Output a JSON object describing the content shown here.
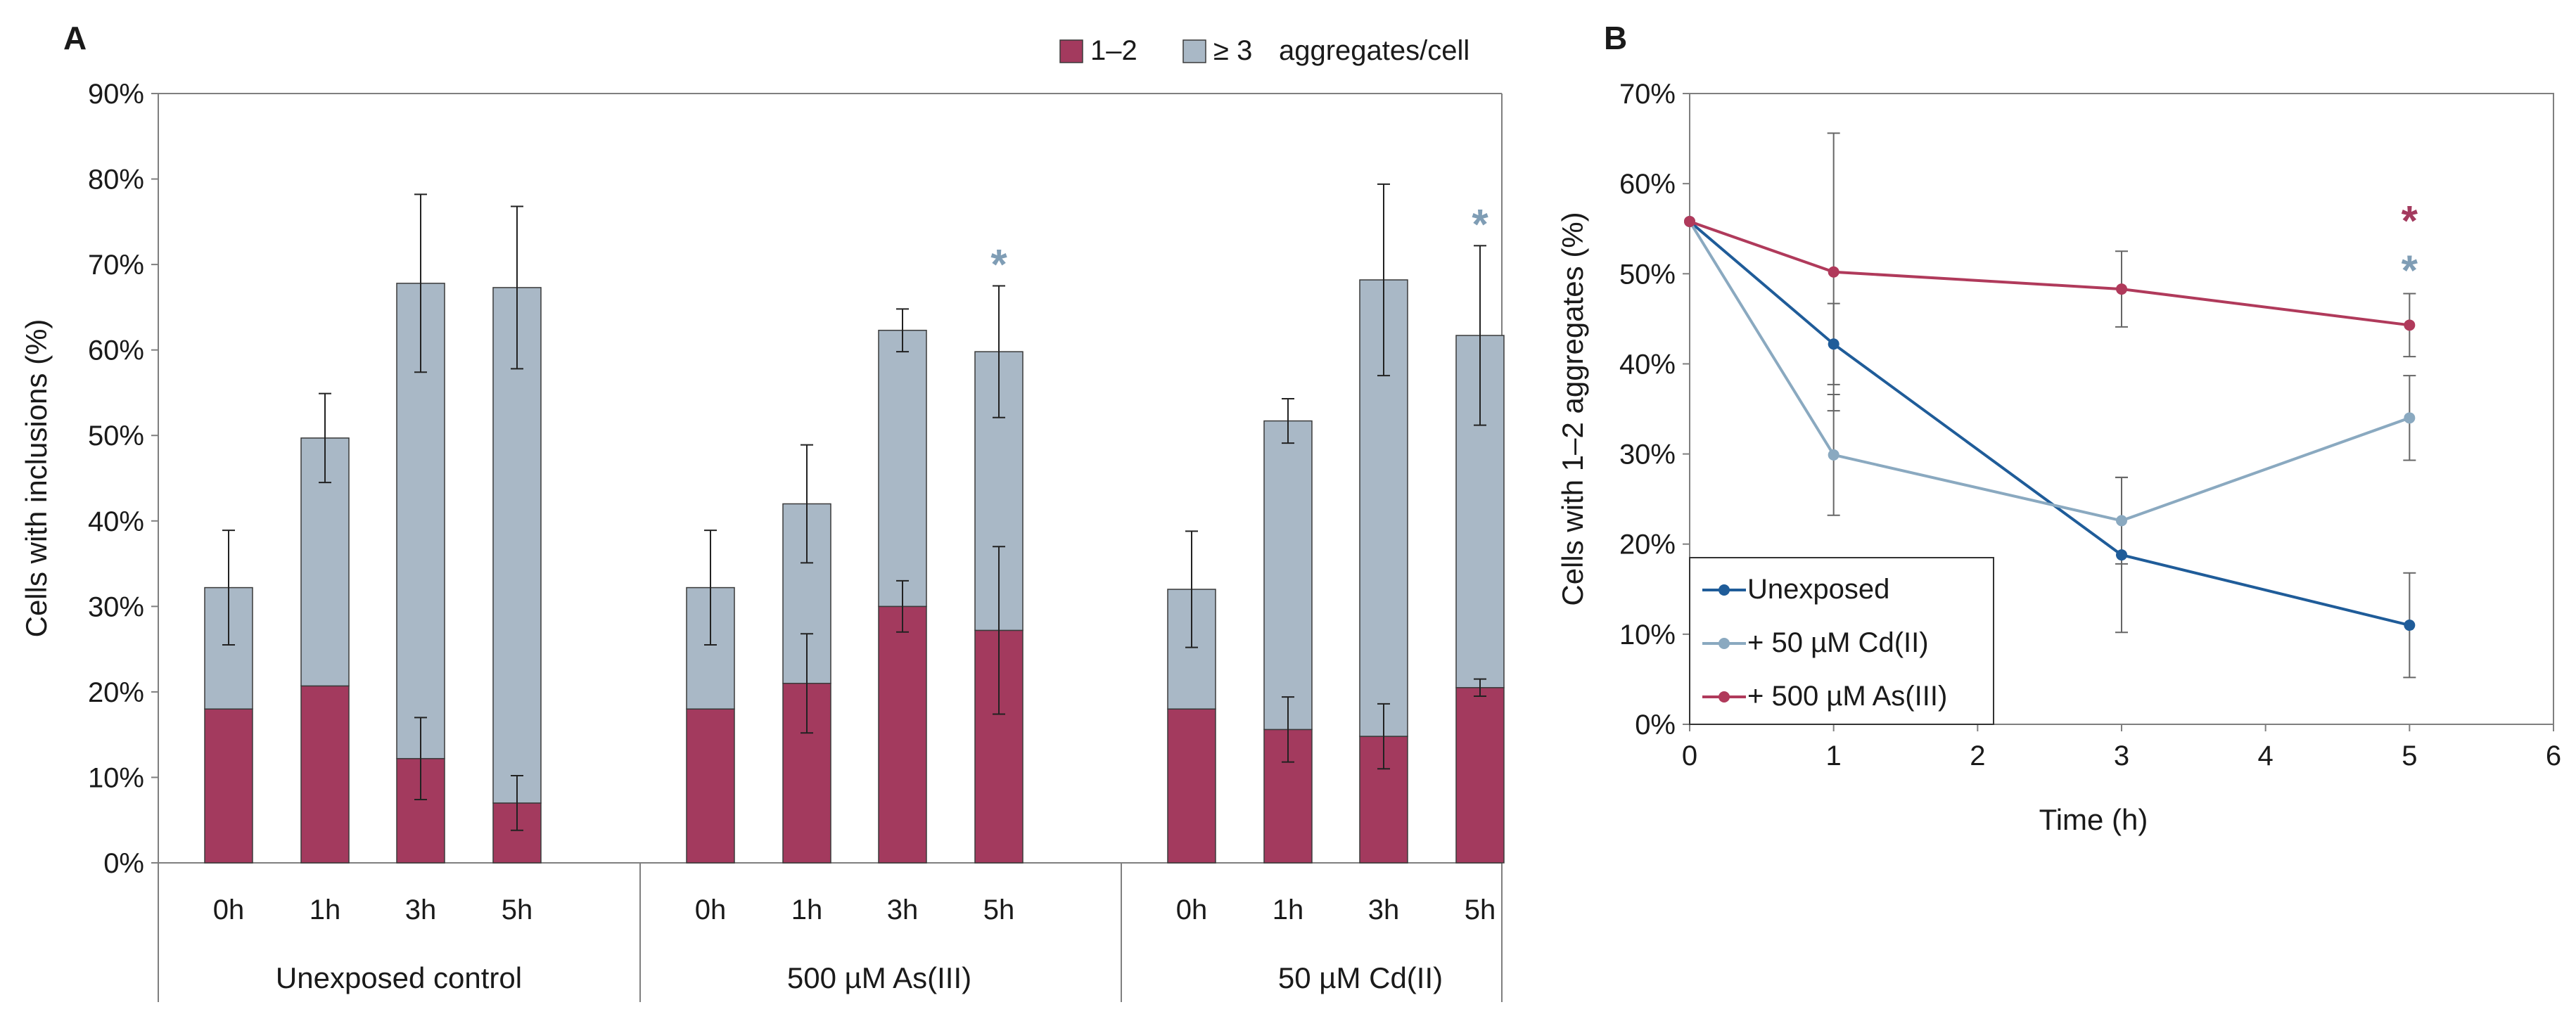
{
  "chart_data": [
    {
      "panel": "A",
      "type": "bar",
      "stacked": true,
      "title": "",
      "xlabel": "",
      "ylabel": "Cells with inclusions (%)",
      "ylim": [
        0,
        90
      ],
      "yticks": [
        "0%",
        "10%",
        "20%",
        "30%",
        "40%",
        "50%",
        "60%",
        "70%",
        "80%",
        "90%"
      ],
      "legend_position": "top-right",
      "legend_suffix": "aggregates/cell",
      "colors": {
        "low": "#A33A5E",
        "high": "#A9B8C6",
        "star": "#7F9DB5",
        "axis": "#7f7f7f"
      },
      "groups": [
        {
          "label": "Unexposed control",
          "categories": [
            "0h",
            "1h",
            "3h",
            "5h"
          ]
        },
        {
          "label": "500 µM As(III)",
          "categories": [
            "0h",
            "1h",
            "3h",
            "5h"
          ]
        },
        {
          "label": "50 µM Cd(II)",
          "categories": [
            "0h",
            "1h",
            "3h",
            "5h"
          ]
        }
      ],
      "series": [
        {
          "name": "1–2",
          "values": [
            18,
            20.7,
            12.2,
            7,
            18,
            21,
            30,
            27.2,
            18,
            15.6,
            14.8,
            20.5
          ],
          "error": [
            0,
            0,
            4.8,
            3.2,
            0,
            5.8,
            3,
            9.8,
            0,
            3.8,
            3.8,
            1
          ]
        },
        {
          "name": "≥ 3",
          "values": [
            14.2,
            29,
            55.6,
            60.3,
            14.2,
            21,
            32.3,
            32.6,
            14,
            36.1,
            53.4,
            41.2
          ],
          "error": [
            6.7,
            5.2,
            10.4,
            9.5,
            6.7,
            6.9,
            2.5,
            7.7,
            6.8,
            2.6,
            11.2,
            10.5
          ]
        }
      ],
      "significance_markers": [
        {
          "group": 1,
          "category": "5h",
          "symbol": "*"
        },
        {
          "group": 2,
          "category": "5h",
          "symbol": "*"
        }
      ]
    },
    {
      "panel": "B",
      "type": "line",
      "title": "",
      "xlabel": "Time (h)",
      "ylabel": "Cells with 1–2 aggregates (%)",
      "xlim": [
        0,
        6
      ],
      "ylim": [
        0,
        70
      ],
      "xticks": [
        "0",
        "1",
        "2",
        "3",
        "4",
        "5",
        "6"
      ],
      "yticks": [
        "0%",
        "10%",
        "20%",
        "30%",
        "40%",
        "50%",
        "60%",
        "70%"
      ],
      "legend_position": "bottom-left",
      "x": [
        0,
        1,
        3,
        5
      ],
      "series": [
        {
          "name": "Unexposed",
          "color": "#1F5C99",
          "values": [
            55.8,
            42.2,
            18.8,
            11
          ],
          "error": [
            0,
            4.5,
            8.6,
            5.8
          ]
        },
        {
          "name": "+ 50 µM Cd(II)",
          "color": "#8AA9C0",
          "values": [
            55.8,
            29.9,
            22.6,
            34
          ],
          "error": [
            0,
            6.7,
            4.8,
            4.7
          ]
        },
        {
          "name": "+ 500 µM As(III)",
          "color": "#B03A5B",
          "values": [
            55.8,
            50.2,
            48.3,
            44.3
          ],
          "error": [
            0,
            15.4,
            4.2,
            3.5
          ]
        }
      ],
      "significance_markers": [
        {
          "series": "+ 500 µM As(III)",
          "x": 5,
          "y": 56,
          "symbol": "*"
        },
        {
          "series": "+ 50 µM Cd(II)",
          "x": 5,
          "y": 50.5,
          "symbol": "*"
        }
      ]
    }
  ]
}
